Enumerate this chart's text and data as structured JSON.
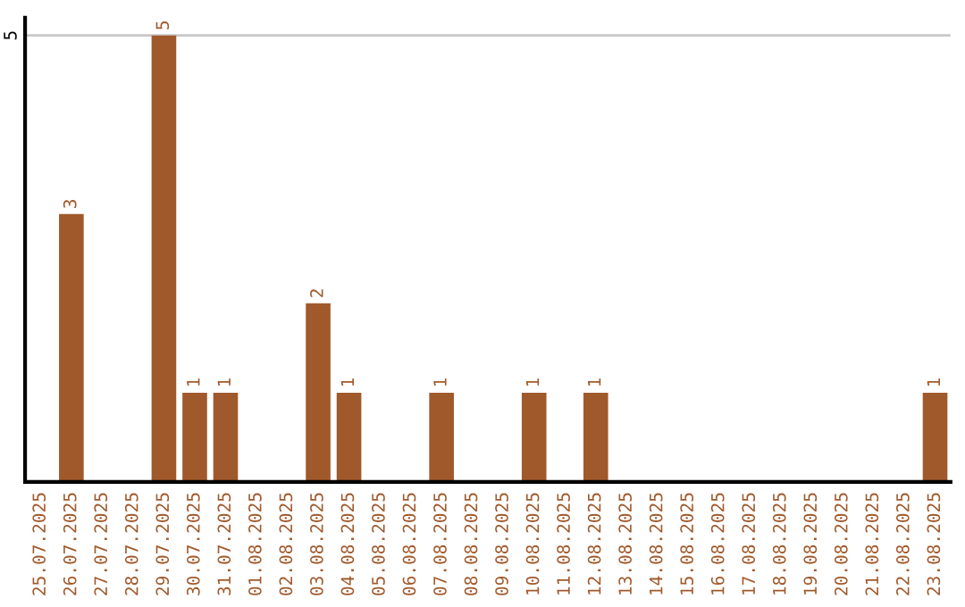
{
  "chart_data": {
    "type": "bar",
    "categories": [
      "25.07.2025",
      "26.07.2025",
      "27.07.2025",
      "28.07.2025",
      "29.07.2025",
      "30.07.2025",
      "31.07.2025",
      "01.08.2025",
      "02.08.2025",
      "03.08.2025",
      "04.08.2025",
      "05.08.2025",
      "06.08.2025",
      "07.08.2025",
      "08.08.2025",
      "09.08.2025",
      "10.08.2025",
      "11.08.2025",
      "12.08.2025",
      "13.08.2025",
      "14.08.2025",
      "15.08.2025",
      "16.08.2025",
      "17.08.2025",
      "18.08.2025",
      "19.08.2025",
      "20.08.2025",
      "21.08.2025",
      "22.08.2025",
      "23.08.2025"
    ],
    "values": [
      0,
      3,
      0,
      0,
      5,
      1,
      1,
      0,
      0,
      2,
      1,
      0,
      0,
      1,
      0,
      0,
      1,
      0,
      1,
      0,
      0,
      0,
      0,
      0,
      0,
      0,
      0,
      0,
      0,
      1
    ],
    "value_labels": [
      null,
      "3",
      null,
      null,
      "5",
      "1",
      "1",
      null,
      null,
      "2",
      "1",
      null,
      null,
      "1",
      null,
      null,
      "1",
      null,
      "1",
      null,
      null,
      null,
      null,
      null,
      null,
      null,
      null,
      null,
      null,
      "1"
    ],
    "color": "#a0592b",
    "ylim": [
      0,
      5.2
    ],
    "yticks": [
      5
    ],
    "grid": "y"
  }
}
